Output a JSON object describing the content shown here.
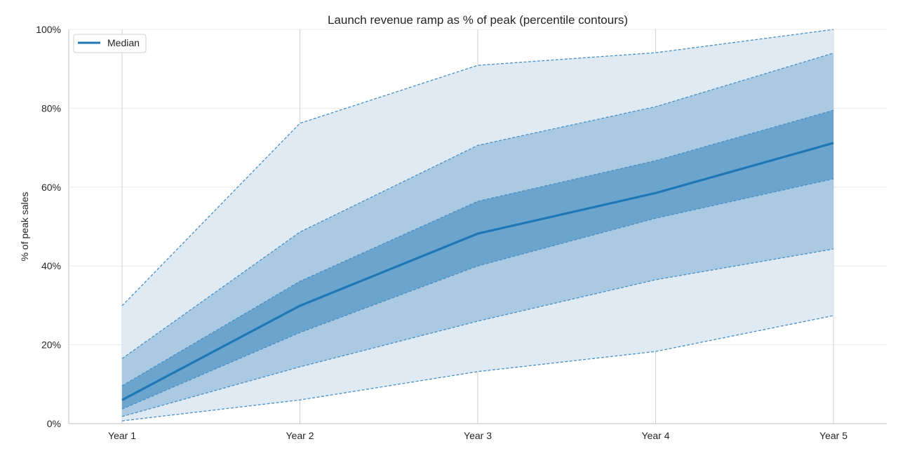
{
  "chart_data": {
    "type": "area",
    "title": "Launch revenue ramp as % of peak (percentile contours)",
    "xlabel": "",
    "ylabel": "% of peak sales",
    "categories": [
      "Year 1",
      "Year 2",
      "Year 3",
      "Year 4",
      "Year 5"
    ],
    "ylim": [
      0,
      100
    ],
    "yticks": [
      0,
      20,
      40,
      60,
      80,
      100
    ],
    "ytick_labels": [
      "0%",
      "20%",
      "40%",
      "60%",
      "80%",
      "100%"
    ],
    "grid": true,
    "legend": {
      "placement": "top-left",
      "entries": [
        "Median"
      ]
    },
    "bands": [
      {
        "lower": [
          0.7,
          6.0,
          13.2,
          18.3,
          27.4
        ],
        "upper": [
          29.9,
          76.2,
          90.9,
          94.1,
          100.0
        ],
        "color": "#dfeaf3"
      },
      {
        "lower": [
          1.8,
          14.4,
          26.0,
          36.5,
          44.3
        ],
        "upper": [
          16.5,
          48.6,
          70.6,
          80.4,
          94.0
        ],
        "color": "#aacae3"
      },
      {
        "lower": [
          3.7,
          23.1,
          40.0,
          52.1,
          62.1
        ],
        "upper": [
          9.6,
          36.1,
          56.4,
          66.7,
          79.5
        ],
        "color": "#6ba4cc"
      }
    ],
    "series": [
      {
        "name": "Median",
        "values": [
          6.0,
          29.9,
          48.2,
          58.5,
          71.2
        ],
        "color": "#1f77b4"
      }
    ],
    "contour_line_color": "#4a90c4"
  }
}
